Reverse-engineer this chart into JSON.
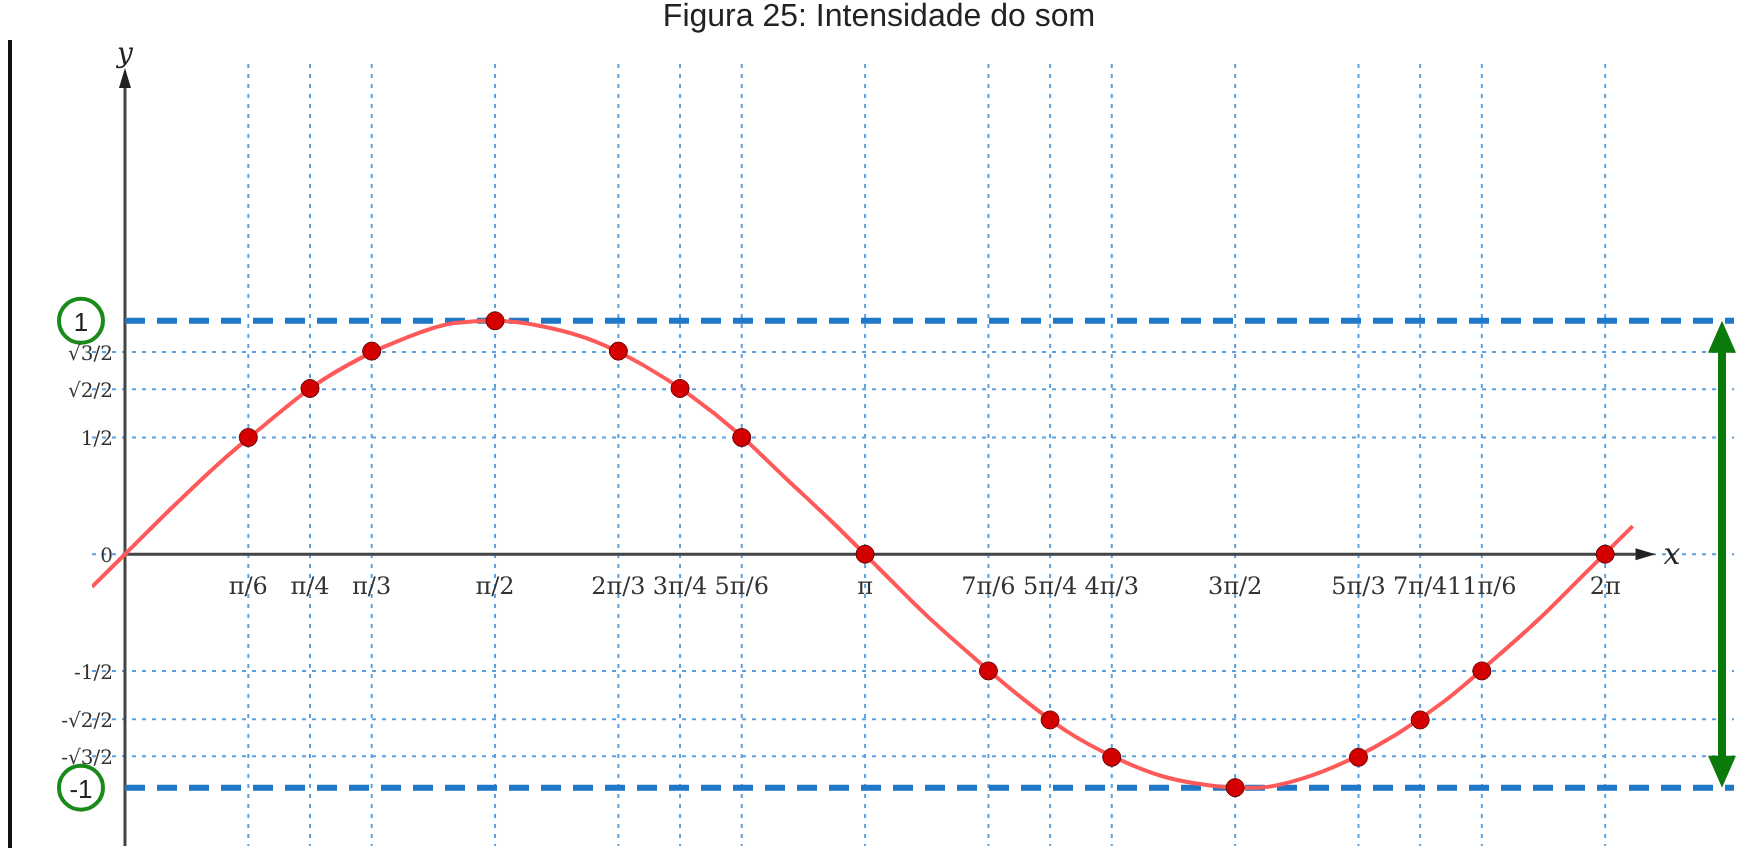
{
  "chart_data": {
    "type": "line",
    "title": "Figura 25: Intensidade do som",
    "xlabel": "x",
    "ylabel": "y",
    "xlim": [
      -0.14,
      6.83
    ],
    "ylim": [
      -1.25,
      2.1
    ],
    "xticks": [
      {
        "value": 0.5236,
        "label": "π/6"
      },
      {
        "value": 0.7854,
        "label": "π/4"
      },
      {
        "value": 1.0472,
        "label": "π/3"
      },
      {
        "value": 1.5708,
        "label": "π/2"
      },
      {
        "value": 2.0944,
        "label": "2π/3"
      },
      {
        "value": 2.3562,
        "label": "3π/4"
      },
      {
        "value": 2.618,
        "label": "5π/6"
      },
      {
        "value": 3.1416,
        "label": "π"
      },
      {
        "value": 3.6652,
        "label": "7π/6"
      },
      {
        "value": 3.927,
        "label": "5π/4"
      },
      {
        "value": 4.1888,
        "label": "4π/3"
      },
      {
        "value": 4.7124,
        "label": "3π/2"
      },
      {
        "value": 5.236,
        "label": "5π/3"
      },
      {
        "value": 5.4978,
        "label": "7π/4"
      },
      {
        "value": 5.7596,
        "label": "11π/6"
      },
      {
        "value": 6.2832,
        "label": "2π"
      }
    ],
    "yticks": [
      {
        "value": -0.866,
        "label": "-√3/2"
      },
      {
        "value": -0.7071,
        "label": "-√2/2"
      },
      {
        "value": -0.5,
        "label": "-1/2"
      },
      0,
      {
        "value": 0.5,
        "label": "1/2"
      },
      {
        "value": 0.7071,
        "label": "√2/2"
      },
      {
        "value": 0.866,
        "label": "√3/2"
      }
    ],
    "grid": true,
    "ref_lines": [
      {
        "axis": "y",
        "value": 1,
        "label": "1",
        "color": "#1f77c8",
        "line_style": "dashed"
      },
      {
        "axis": "y",
        "value": -1,
        "label": "-1",
        "color": "#1f77c8",
        "line_style": "dashed"
      }
    ],
    "series": [
      {
        "color": "#ff5a5a",
        "marker": "none",
        "x": [
          -0.14,
          0,
          0.2,
          0.4,
          0.6,
          0.8,
          1.0,
          1.2,
          1.4,
          1.57,
          1.8,
          2.0,
          2.2,
          2.4,
          2.6,
          2.8,
          3.0,
          3.2,
          3.4,
          3.6,
          3.8,
          4.0,
          4.2,
          4.4,
          4.6,
          4.71,
          4.8,
          5.0,
          5.2,
          5.4,
          5.6,
          5.8,
          6.0,
          6.2,
          6.4
        ],
        "values": [
          -0.14,
          0,
          0.2,
          0.39,
          0.56,
          0.72,
          0.84,
          0.93,
          0.99,
          1.0,
          0.97,
          0.91,
          0.81,
          0.68,
          0.52,
          0.33,
          0.14,
          -0.06,
          -0.26,
          -0.44,
          -0.61,
          -0.76,
          -0.87,
          -0.95,
          -0.99,
          -1.0,
          -1.0,
          -0.96,
          -0.88,
          -0.77,
          -0.63,
          -0.46,
          -0.28,
          -0.08,
          0.12
        ]
      },
      {
        "type": "scatter",
        "color": "#d40000",
        "marker": "circle",
        "x": [
          0.5236,
          0.7854,
          1.0472,
          1.5708,
          2.0944,
          2.3562,
          2.618,
          3.1416,
          3.6652,
          3.927,
          4.1888,
          4.7124,
          5.236,
          5.4978,
          5.7596,
          6.2832
        ],
        "values": [
          0.5,
          0.71,
          0.87,
          1,
          0.87,
          0.71,
          0.5,
          0,
          -0.5,
          -0.71,
          -0.87,
          -1,
          -0.87,
          -0.71,
          -0.5,
          0
        ]
      }
    ]
  }
}
